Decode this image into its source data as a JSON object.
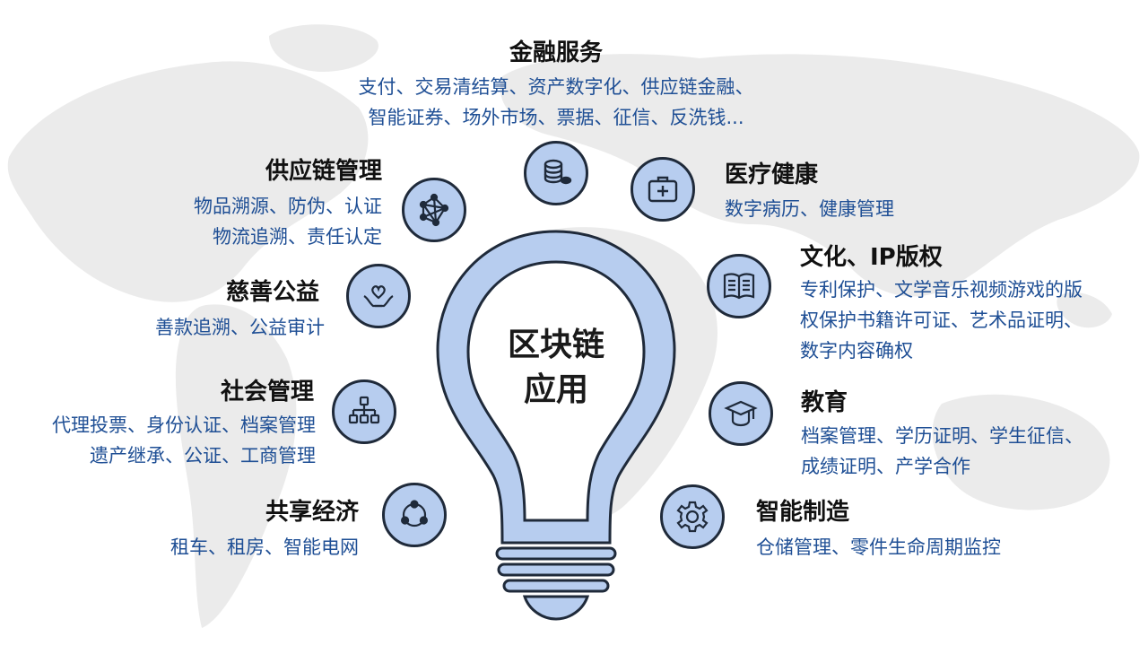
{
  "center": {
    "line1": "区块链",
    "line2": "应用"
  },
  "categories": [
    {
      "key": "finance",
      "icon": "coins-icon",
      "title": "金融服务",
      "lines": [
        "支付、交易清结算、资产数字化、供应链金融、",
        "智能证券、场外市场、票据、征信、反洗钱..."
      ]
    },
    {
      "key": "supply",
      "icon": "network-icon",
      "title": "供应链管理",
      "lines": [
        "物品溯源、防伪、认证",
        "物流追溯、责任认定"
      ]
    },
    {
      "key": "charity",
      "icon": "heart-hands-icon",
      "title": "慈善公益",
      "lines": [
        "善款追溯、公益审计"
      ]
    },
    {
      "key": "social",
      "icon": "hierarchy-icon",
      "title": "社会管理",
      "lines": [
        "代理投票、身份认证、档案管理",
        "遗产继承、公证、工商管理"
      ]
    },
    {
      "key": "sharing",
      "icon": "cycle-icon",
      "title": "共享经济",
      "lines": [
        "租车、租房、智能电网"
      ]
    },
    {
      "key": "health",
      "icon": "medical-kit-icon",
      "title": "医疗健康",
      "lines": [
        "数字病历、健康管理"
      ]
    },
    {
      "key": "culture",
      "icon": "book-icon",
      "title": "文化、IP版权",
      "lines": [
        "专利保护、文学音乐视频游戏的版",
        "权保护书籍许可证、艺术品证明、",
        "数字内容确权"
      ]
    },
    {
      "key": "education",
      "icon": "graduation-cap-icon",
      "title": "教育",
      "lines": [
        "档案管理、学历证明、学生征信、",
        "成绩证明、产学合作"
      ]
    },
    {
      "key": "manufacturing",
      "icon": "gear-icon",
      "title": "智能制造",
      "lines": [
        "仓储管理、零件生命周期监控"
      ]
    }
  ]
}
